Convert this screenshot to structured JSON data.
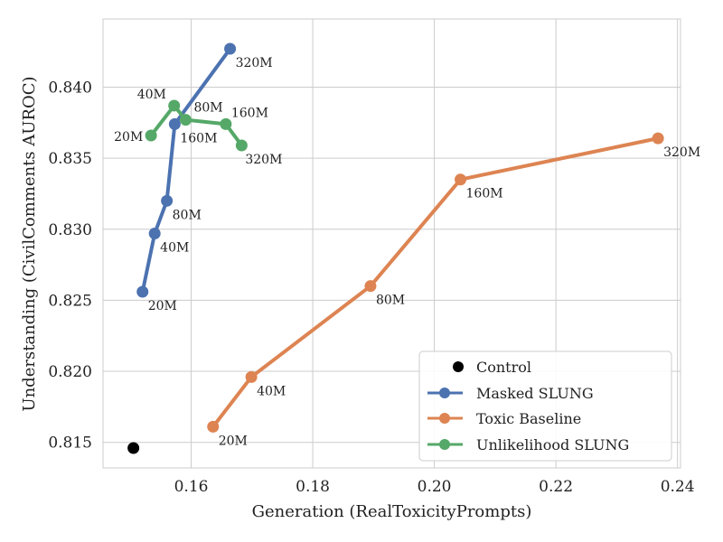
{
  "chart_data": {
    "type": "line",
    "title": "",
    "xlabel": "Generation (RealToxicityPrompts)",
    "ylabel": "Understanding (CivilComments AUROC)",
    "xlim": [
      0.1455,
      0.2405
    ],
    "ylim": [
      0.8132,
      0.8448
    ],
    "xticks": [
      0.16,
      0.18,
      0.2,
      0.22,
      0.24
    ],
    "xtick_labels": [
      "0.16",
      "0.18",
      "0.20",
      "0.22",
      "0.24"
    ],
    "yticks": [
      0.815,
      0.82,
      0.825,
      0.83,
      0.835,
      0.84
    ],
    "ytick_labels": [
      "0.815",
      "0.820",
      "0.825",
      "0.830",
      "0.835",
      "0.840"
    ],
    "grid": true,
    "legend_position": "bottom-right",
    "control": {
      "name": "Control",
      "color": "#000000",
      "x": 0.1505,
      "y": 0.8146
    },
    "series": [
      {
        "name": "Masked SLUNG",
        "color": "#4c72b0",
        "points": [
          {
            "x": 0.152,
            "y": 0.8256,
            "label": "20M"
          },
          {
            "x": 0.154,
            "y": 0.8297,
            "label": "40M"
          },
          {
            "x": 0.156,
            "y": 0.832,
            "label": "80M"
          },
          {
            "x": 0.1573,
            "y": 0.8374,
            "label": "160M"
          },
          {
            "x": 0.1664,
            "y": 0.8427,
            "label": "320M"
          }
        ]
      },
      {
        "name": "Toxic Baseline",
        "color": "#dd8452",
        "points": [
          {
            "x": 0.1636,
            "y": 0.8161,
            "label": "20M"
          },
          {
            "x": 0.1699,
            "y": 0.8196,
            "label": "40M"
          },
          {
            "x": 0.1895,
            "y": 0.826,
            "label": "80M"
          },
          {
            "x": 0.2043,
            "y": 0.8335,
            "label": "160M"
          },
          {
            "x": 0.2368,
            "y": 0.8364,
            "label": "320M"
          }
        ]
      },
      {
        "name": "Unlikelihood SLUNG",
        "color": "#55a868",
        "points": [
          {
            "x": 0.1534,
            "y": 0.8366,
            "label": "20M"
          },
          {
            "x": 0.1572,
            "y": 0.8387,
            "label": "40M"
          },
          {
            "x": 0.1591,
            "y": 0.8377,
            "label": "80M"
          },
          {
            "x": 0.1657,
            "y": 0.8374,
            "label": "160M"
          },
          {
            "x": 0.1683,
            "y": 0.8359,
            "label": "320M"
          }
        ]
      }
    ]
  }
}
